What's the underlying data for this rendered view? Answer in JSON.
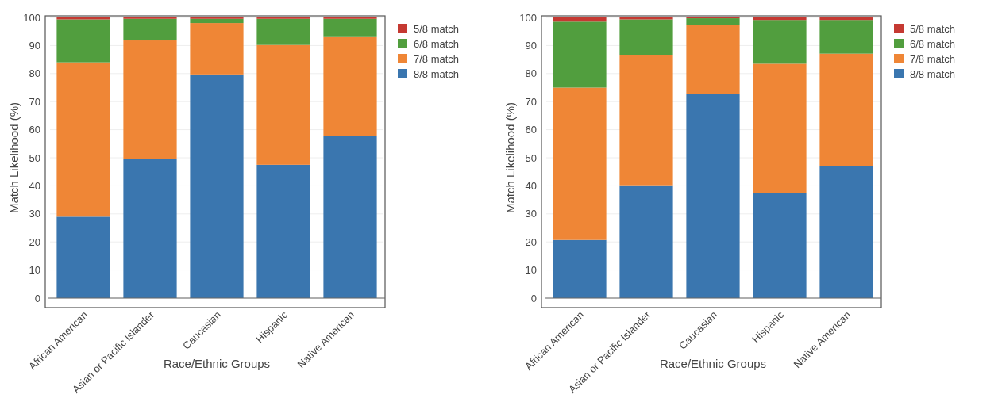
{
  "chart_data": [
    {
      "type": "bar",
      "stacked": true,
      "xlabel": "Race/Ethnic Groups",
      "ylabel": "Match Likelihood (%)",
      "categories": [
        "African American",
        "Asian or Pacific Islander",
        "Caucasian",
        "Hispanic",
        "Native American"
      ],
      "ylim": [
        0,
        100
      ],
      "yticks": [
        0,
        10,
        20,
        30,
        40,
        50,
        60,
        70,
        80,
        90,
        100
      ],
      "grid": "y",
      "legend": "top right",
      "series": [
        {
          "name": "8/8 match",
          "color": "#3a76af",
          "values": [
            29,
            49.7,
            79.7,
            47.5,
            57.7
          ]
        },
        {
          "name": "7/8 match",
          "color": "#ef8636",
          "values": [
            55,
            42.1,
            18.3,
            42.7,
            35.3
          ]
        },
        {
          "name": "6/8 match",
          "color": "#519e3e",
          "values": [
            15.3,
            7.7,
            1.5,
            9.3,
            6.5
          ]
        },
        {
          "name": "5/8 match",
          "color": "#c53932",
          "values": [
            0.7,
            0.5,
            0.5,
            0.5,
            0.5
          ]
        }
      ]
    },
    {
      "type": "bar",
      "stacked": true,
      "xlabel": "Race/Ethnic Groups",
      "ylabel": "Match Likelihood (%)",
      "categories": [
        "African American",
        "Asian or Pacific Islander",
        "Caucasian",
        "Hispanic",
        "Native American"
      ],
      "ylim": [
        0,
        100
      ],
      "yticks": [
        0,
        10,
        20,
        30,
        40,
        50,
        60,
        70,
        80,
        90,
        100
      ],
      "grid": "y",
      "legend": "top right",
      "series": [
        {
          "name": "8/8 match",
          "color": "#3a76af",
          "values": [
            20.7,
            40.2,
            72.8,
            37.3,
            46.9
          ]
        },
        {
          "name": "7/8 match",
          "color": "#ef8636",
          "values": [
            54.3,
            46.3,
            24.4,
            46.2,
            40.2
          ]
        },
        {
          "name": "6/8 match",
          "color": "#519e3e",
          "values": [
            23.5,
            12.8,
            2.5,
            15.6,
            12.0
          ]
        },
        {
          "name": "5/8 match",
          "color": "#c53932",
          "values": [
            1.5,
            0.7,
            0.3,
            0.9,
            0.9
          ]
        }
      ]
    }
  ]
}
